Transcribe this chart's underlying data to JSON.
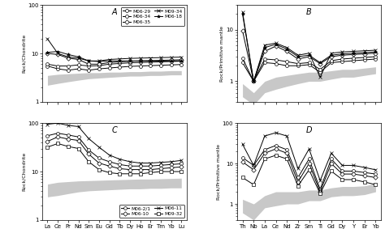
{
  "panel_A": {
    "title": "A",
    "ylabel": "Rock/Chondrite",
    "elements": [
      "La",
      "Ce",
      "Pr",
      "Nd",
      "Sm",
      "Eu",
      "Gd",
      "Tb",
      "Dy",
      "Ho",
      "Er",
      "Tm",
      "Yb",
      "Lu"
    ],
    "ylim": [
      1,
      100
    ],
    "series": {
      "M06-29": {
        "marker": "o",
        "mfc": "white",
        "values": [
          5.5,
          4.8,
          4.5,
          4.8,
          4.5,
          4.8,
          5.0,
          5.2,
          5.4,
          5.5,
          5.6,
          5.7,
          5.8,
          5.9
        ]
      },
      "M06-34": {
        "marker": "o",
        "mfc": "white",
        "values": [
          6.0,
          5.5,
          5.5,
          5.8,
          5.5,
          5.6,
          6.0,
          6.2,
          6.4,
          6.5,
          6.6,
          6.7,
          6.8,
          6.9
        ]
      },
      "M06-35": {
        "marker": "D",
        "mfc": "white",
        "values": [
          10.0,
          9.5,
          8.0,
          7.5,
          6.0,
          6.0,
          6.5,
          6.7,
          6.9,
          7.0,
          7.1,
          7.2,
          7.3,
          7.4
        ]
      },
      "M09-34": {
        "marker": "x",
        "mfc": "black",
        "values": [
          20.0,
          10.0,
          8.5,
          8.0,
          7.0,
          7.0,
          7.5,
          7.7,
          7.9,
          8.0,
          8.1,
          8.2,
          8.3,
          8.4
        ]
      },
      "M06-18": {
        "marker": "*",
        "mfc": "black",
        "values": [
          10.5,
          11.0,
          9.5,
          8.5,
          7.0,
          6.8,
          7.0,
          7.0,
          7.0,
          7.0,
          7.0,
          7.0,
          7.0,
          7.0
        ]
      }
    },
    "shade_low": [
      2.2,
      2.4,
      2.6,
      2.8,
      3.0,
      3.1,
      3.2,
      3.3,
      3.4,
      3.4,
      3.5,
      3.5,
      3.6,
      3.6
    ],
    "shade_high": [
      3.5,
      3.7,
      3.8,
      3.9,
      4.0,
      4.0,
      4.1,
      4.1,
      4.2,
      4.2,
      4.3,
      4.3,
      4.4,
      4.4
    ]
  },
  "panel_B": {
    "title": "B",
    "ylabel": "Rock/Primitive mantle",
    "elements": [
      "Th",
      "Nb",
      "La",
      "Ce",
      "Nd",
      "Zr",
      "Sm",
      "Ti",
      "Gd",
      "Dy",
      "Y",
      "Er",
      "Yb"
    ],
    "ylim": [
      0.4,
      30
    ],
    "series": {
      "M06-29": {
        "marker": "o",
        "mfc": "white",
        "values": [
          2.3,
          1.0,
          2.3,
          2.2,
          2.0,
          2.0,
          2.1,
          1.5,
          2.3,
          2.4,
          2.5,
          2.6,
          2.7
        ]
      },
      "M06-34": {
        "marker": "o",
        "mfc": "white",
        "values": [
          2.8,
          1.0,
          2.7,
          2.6,
          2.4,
          2.2,
          2.3,
          1.7,
          2.5,
          2.7,
          2.8,
          2.9,
          3.0
        ]
      },
      "M06-35": {
        "marker": "D",
        "mfc": "white",
        "values": [
          9.5,
          1.0,
          3.8,
          4.8,
          3.8,
          2.7,
          3.0,
          2.2,
          3.0,
          3.2,
          3.3,
          3.4,
          3.5
        ]
      },
      "M09-34": {
        "marker": "x",
        "mfc": "black",
        "values": [
          22.0,
          1.0,
          5.0,
          5.5,
          4.5,
          3.2,
          3.5,
          1.2,
          3.5,
          3.7,
          3.8,
          3.9,
          4.0
        ]
      },
      "M06-18": {
        "marker": "*",
        "mfc": "black",
        "values": [
          20.0,
          1.0,
          4.5,
          5.2,
          4.2,
          3.0,
          3.2,
          2.3,
          3.2,
          3.4,
          3.5,
          3.6,
          3.7
        ]
      }
    },
    "shade_low": [
      0.5,
      0.35,
      0.6,
      0.7,
      0.8,
      0.9,
      1.0,
      1.0,
      1.1,
      1.2,
      1.2,
      1.3,
      1.4
    ],
    "shade_high": [
      0.9,
      0.6,
      1.0,
      1.2,
      1.3,
      1.4,
      1.5,
      1.5,
      1.6,
      1.7,
      1.7,
      1.8,
      1.9
    ]
  },
  "panel_C": {
    "title": "C",
    "ylabel": "Rock/Chondrite",
    "elements": [
      "La",
      "Ce",
      "Pr",
      "Nd",
      "Sm",
      "Eu",
      "Gd",
      "Tb",
      "Dy",
      "Ho",
      "Er",
      "Tm",
      "Yb",
      "Lu"
    ],
    "ylim": [
      1,
      100
    ],
    "series": {
      "M06-2/1": {
        "marker": "o",
        "mfc": "white",
        "values": [
          55.0,
          62.0,
          57.0,
          52.0,
          28.0,
          19.0,
          16.0,
          14.0,
          13.0,
          13.0,
          13.0,
          13.5,
          14.0,
          14.5
        ]
      },
      "M06-10": {
        "marker": "D",
        "mfc": "white",
        "values": [
          42.0,
          52.0,
          47.0,
          44.0,
          23.0,
          15.0,
          13.0,
          11.5,
          11.0,
          11.0,
          11.0,
          11.5,
          12.0,
          12.5
        ]
      },
      "M06-11": {
        "marker": "x",
        "mfc": "black",
        "values": [
          95.0,
          100.0,
          90.0,
          85.0,
          48.0,
          32.0,
          22.0,
          18.0,
          16.0,
          15.0,
          15.0,
          15.5,
          16.0,
          17.0
        ]
      },
      "M09-32": {
        "marker": "s",
        "mfc": "white",
        "values": [
          32.0,
          38.0,
          33.0,
          30.0,
          16.0,
          11.0,
          9.5,
          9.0,
          9.0,
          9.0,
          9.5,
          10.0,
          10.0,
          10.0
        ]
      }
    },
    "shade_low": [
      3.0,
      3.2,
      3.5,
      3.8,
      4.0,
      4.1,
      4.2,
      4.3,
      4.4,
      4.4,
      4.5,
      4.5,
      4.6,
      4.6
    ],
    "shade_high": [
      5.5,
      6.0,
      6.2,
      6.4,
      6.5,
      6.6,
      6.7,
      6.8,
      6.9,
      7.0,
      7.0,
      7.1,
      7.2,
      7.3
    ]
  },
  "panel_D": {
    "title": "D",
    "ylabel": "Rock/Primitive mantle",
    "elements": [
      "Th",
      "Nb",
      "La",
      "Ce",
      "Nd",
      "Zr",
      "Sm",
      "Ti",
      "Gd",
      "Dy",
      "Y",
      "Er",
      "Yb"
    ],
    "ylim": [
      0.4,
      100
    ],
    "series": {
      "M06-2/1": {
        "marker": "o",
        "mfc": "white",
        "values": [
          14.0,
          9.0,
          22.0,
          28.0,
          22.0,
          4.5,
          13.0,
          2.3,
          13.0,
          6.5,
          6.5,
          6.0,
          5.5
        ]
      },
      "M06-10": {
        "marker": "D",
        "mfc": "white",
        "values": [
          11.0,
          7.0,
          18.0,
          23.0,
          18.0,
          3.5,
          10.0,
          2.0,
          10.0,
          5.5,
          5.5,
          5.0,
          4.5
        ]
      },
      "M06-11": {
        "marker": "x",
        "mfc": "black",
        "values": [
          30.0,
          9.0,
          48.0,
          58.0,
          48.0,
          7.5,
          23.0,
          3.8,
          18.0,
          9.0,
          9.0,
          8.0,
          7.0
        ]
      },
      "M09-32": {
        "marker": "s",
        "mfc": "white",
        "values": [
          4.5,
          3.0,
          13.0,
          16.0,
          13.0,
          2.8,
          7.0,
          1.8,
          6.5,
          4.0,
          4.0,
          3.5,
          3.0
        ]
      }
    },
    "shade_low": [
      0.6,
      0.4,
      0.8,
      0.9,
      1.0,
      1.0,
      1.2,
      1.2,
      1.5,
      1.6,
      1.6,
      1.7,
      2.0
    ],
    "shade_high": [
      1.3,
      1.0,
      1.6,
      2.0,
      2.0,
      2.0,
      2.2,
      2.2,
      2.5,
      2.7,
      2.7,
      2.8,
      3.2
    ]
  },
  "legend_A": [
    {
      "label": "M06-29",
      "marker": "o",
      "mfc": "white"
    },
    {
      "label": "M06-34",
      "marker": "o",
      "mfc": "white"
    },
    {
      "label": "M06-35",
      "marker": "D",
      "mfc": "white"
    },
    {
      "label": "M09-34",
      "marker": "x",
      "mfc": "black"
    },
    {
      "label": "M06-18",
      "marker": "*",
      "mfc": "black"
    }
  ],
  "legend_C": [
    {
      "label": "M06-2/1",
      "marker": "o",
      "mfc": "white"
    },
    {
      "label": "M06-10",
      "marker": "D",
      "mfc": "white"
    },
    {
      "label": "M06-11",
      "marker": "x",
      "mfc": "black"
    },
    {
      "label": "M09-32",
      "marker": "s",
      "mfc": "white"
    }
  ]
}
